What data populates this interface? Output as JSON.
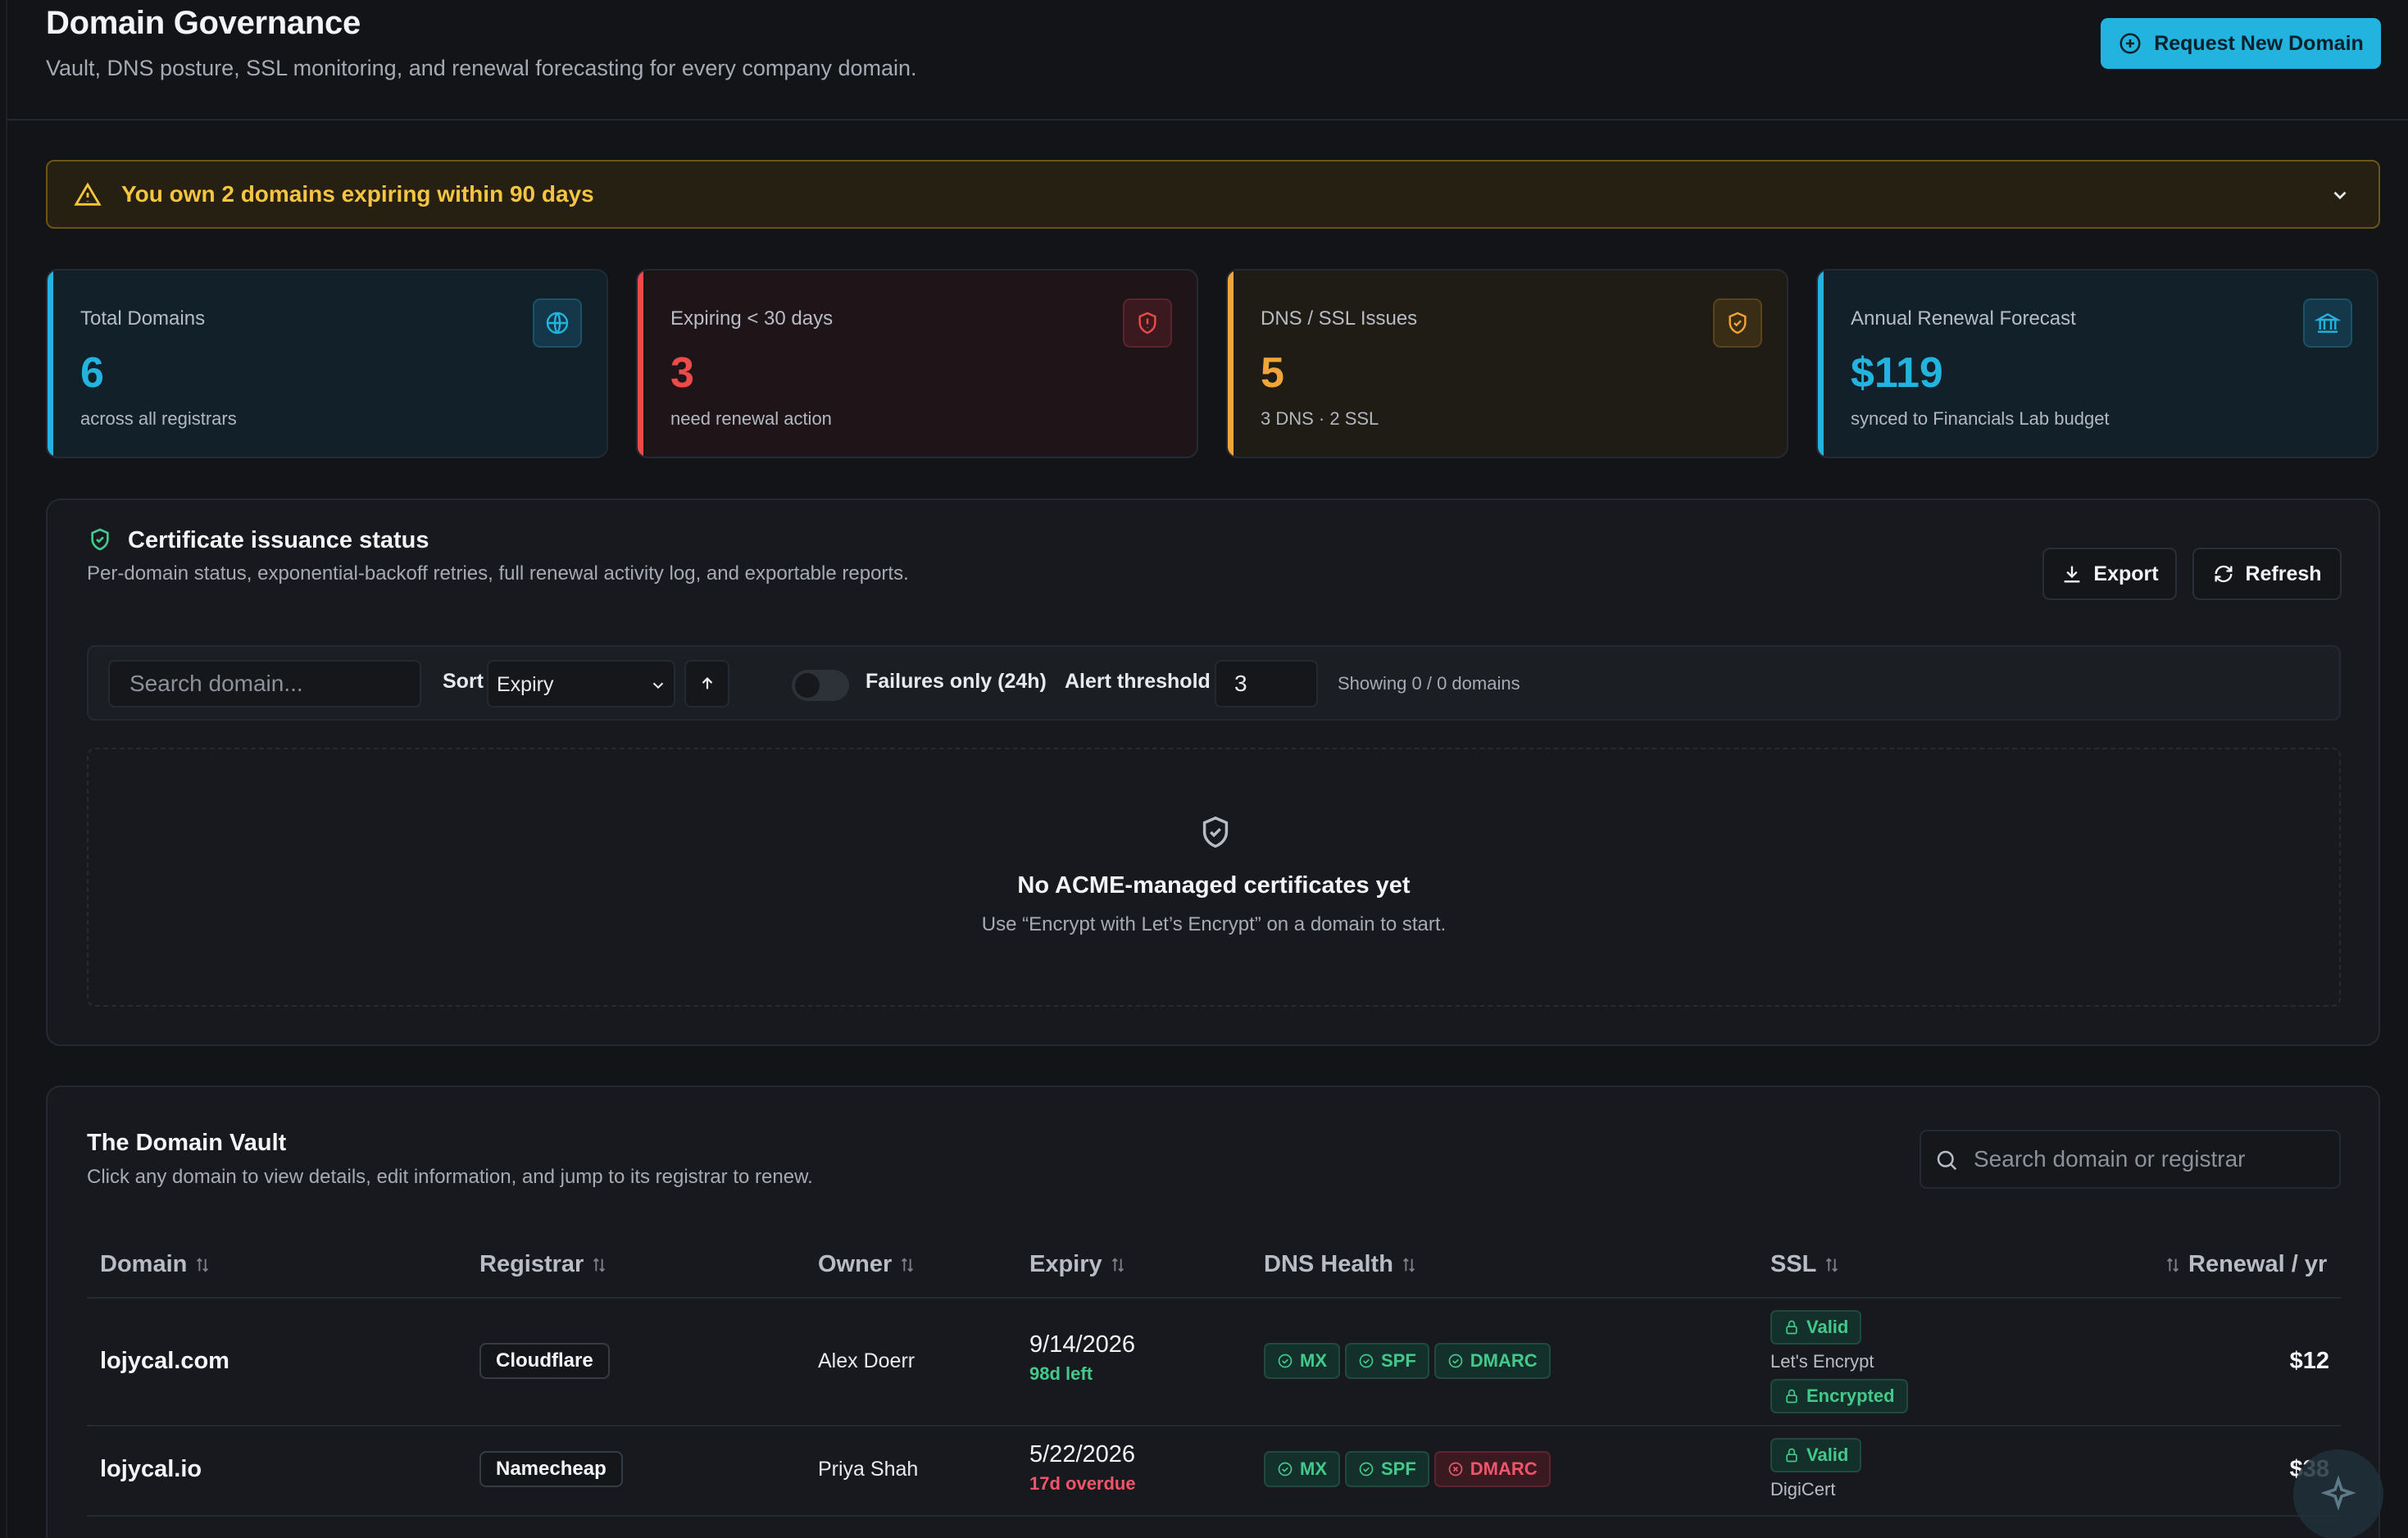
{
  "header": {
    "title": "Domain Governance",
    "subtitle": "Vault, DNS posture, SSL monitoring, and renewal forecasting for every company domain.",
    "cta_label": "Request New Domain"
  },
  "alert": {
    "text": "You own 2 domains expiring within 90 days"
  },
  "stats": [
    {
      "label": "Total Domains",
      "value": "6",
      "desc": "across all registrars",
      "icon": "globe-icon",
      "color": "#22b3de"
    },
    {
      "label": "Expiring < 30 days",
      "value": "3",
      "desc": "need renewal action",
      "icon": "shield-alert-icon",
      "color": "#ee4a4a"
    },
    {
      "label": "DNS / SSL Issues",
      "value": "5",
      "desc": "3 DNS · 2 SSL",
      "icon": "shield-check-icon",
      "color": "#f0a53a"
    },
    {
      "label": "Annual Renewal Forecast",
      "value": "$119",
      "desc": "synced to Financials Lab budget",
      "icon": "bank-icon",
      "color": "#22b3de"
    }
  ],
  "cert": {
    "title": "Certificate issuance status",
    "subtitle": "Per-domain status, exponential-backoff retries, full renewal activity log, and exportable reports.",
    "export_label": "Export",
    "refresh_label": "Refresh",
    "search_placeholder": "Search domain...",
    "sort_label": "Sort",
    "sort_value": "Expiry",
    "failures_label": "Failures only (24h)",
    "threshold_label": "Alert threshold",
    "threshold_value": "3",
    "showing": "Showing 0 / 0 domains",
    "empty_title": "No ACME-managed certificates yet",
    "empty_sub": "Use “Encrypt with Let’s Encrypt” on a domain to start."
  },
  "vault": {
    "title": "The Domain Vault",
    "subtitle": "Click any domain to view details, edit information, and jump to its registrar to renew.",
    "search_placeholder": "Search domain or registrar",
    "columns": [
      "Domain",
      "Registrar",
      "Owner",
      "Expiry",
      "DNS Health",
      "SSL",
      "Renewal / yr"
    ],
    "rows": [
      {
        "domain": "lojycal.com",
        "registrar": "Cloudflare",
        "owner": "Alex Doerr",
        "expiry": "9/14/2026",
        "expiry_note": "98d left",
        "dns": {
          "mx": "MX",
          "spf": "SPF",
          "dmarc": "DMARC"
        },
        "ssl_status": "Valid",
        "ssl_issuer": "Let's Encrypt",
        "ssl_extra": "Encrypted",
        "renewal": "$12"
      },
      {
        "domain": "lojycal.io",
        "registrar": "Namecheap",
        "owner": "Priya Shah",
        "expiry": "5/22/2026",
        "expiry_note": "17d overdue",
        "dns": {
          "mx": "MX",
          "spf": "SPF",
          "dmarc": "DMARC"
        },
        "ssl_status": "Valid",
        "ssl_issuer": "DigiCert",
        "renewal": "$38"
      }
    ]
  },
  "colors": {
    "accent": "#22b3de",
    "ok": "#43c98b",
    "danger": "#f2546a",
    "warning": "#f5c542"
  }
}
